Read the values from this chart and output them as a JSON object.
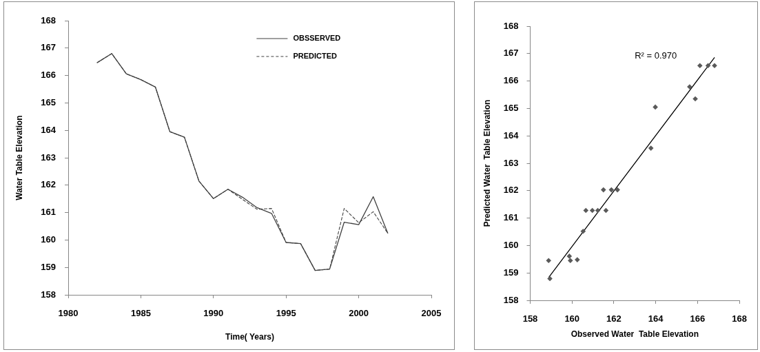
{
  "chart_data": [
    {
      "type": "line",
      "xlabel": "Time( Years)",
      "ylabel": "Water Table Elevation",
      "x": [
        1982,
        1983,
        1984,
        1985,
        1986,
        1987,
        1988,
        1989,
        1990,
        1991,
        1992,
        1993,
        1994,
        1995,
        1996,
        1997,
        1998,
        1999,
        2000,
        2001,
        2002
      ],
      "series": [
        {
          "name": "OBSSERVED",
          "color": "#404040",
          "line_style": "solid",
          "values": [
            166.47,
            166.8,
            166.06,
            165.85,
            165.58,
            163.95,
            163.75,
            162.15,
            161.51,
            161.85,
            161.56,
            161.18,
            160.97,
            159.91,
            159.87,
            158.89,
            158.94,
            160.65,
            160.56,
            161.58,
            160.25
          ]
        },
        {
          "name": "PREDICTED",
          "color": "#404040",
          "line_style": "dashed",
          "values": [
            166.47,
            166.8,
            166.06,
            165.85,
            165.58,
            163.95,
            163.75,
            162.15,
            161.51,
            161.85,
            161.48,
            161.12,
            161.15,
            159.91,
            159.87,
            158.89,
            158.94,
            161.15,
            160.63,
            161.03,
            160.25
          ]
        }
      ],
      "xlim": [
        1980,
        2005
      ],
      "xticks": [
        1980,
        1985,
        1990,
        1995,
        2000,
        2005
      ],
      "ylim": [
        158,
        168
      ],
      "yticks": [
        158,
        159,
        160,
        161,
        162,
        163,
        164,
        165,
        166,
        167,
        168
      ],
      "legend": "top right",
      "marker": "none",
      "grid": false
    },
    {
      "type": "scatter",
      "xlabel": "Observed Water  Table Elevation",
      "ylabel": "Predicted Water  Table Elevation",
      "series": [
        {
          "color": "#5a5a5a",
          "marker": "diamond",
          "x": [
            158.88,
            158.94,
            159.87,
            159.92,
            160.25,
            160.53,
            160.66,
            160.97,
            161.23,
            161.62,
            161.5,
            161.88,
            162.17,
            163.77,
            163.98,
            165.62,
            165.89,
            166.11,
            166.5,
            166.81
          ],
          "values": [
            159.45,
            158.79,
            159.61,
            159.45,
            159.48,
            160.52,
            161.28,
            161.28,
            161.28,
            161.28,
            162.03,
            162.03,
            162.03,
            163.55,
            165.05,
            165.79,
            165.35,
            166.56,
            166.56,
            166.56
          ]
        },
        {
          "type": "line",
          "color": "#000000",
          "marker": "none",
          "line_style": "solid",
          "x": [
            158.9,
            166.8
          ],
          "values": [
            158.85,
            166.85
          ]
        }
      ],
      "xlim": [
        158,
        168
      ],
      "xticks": [
        158,
        160,
        162,
        164,
        166,
        168
      ],
      "ylim": [
        158,
        168
      ],
      "yticks": [
        158,
        159,
        160,
        161,
        162,
        163,
        164,
        165,
        166,
        167,
        168
      ],
      "annotations": [
        "R² = 0.970"
      ],
      "grid": false,
      "legend": false
    }
  ]
}
